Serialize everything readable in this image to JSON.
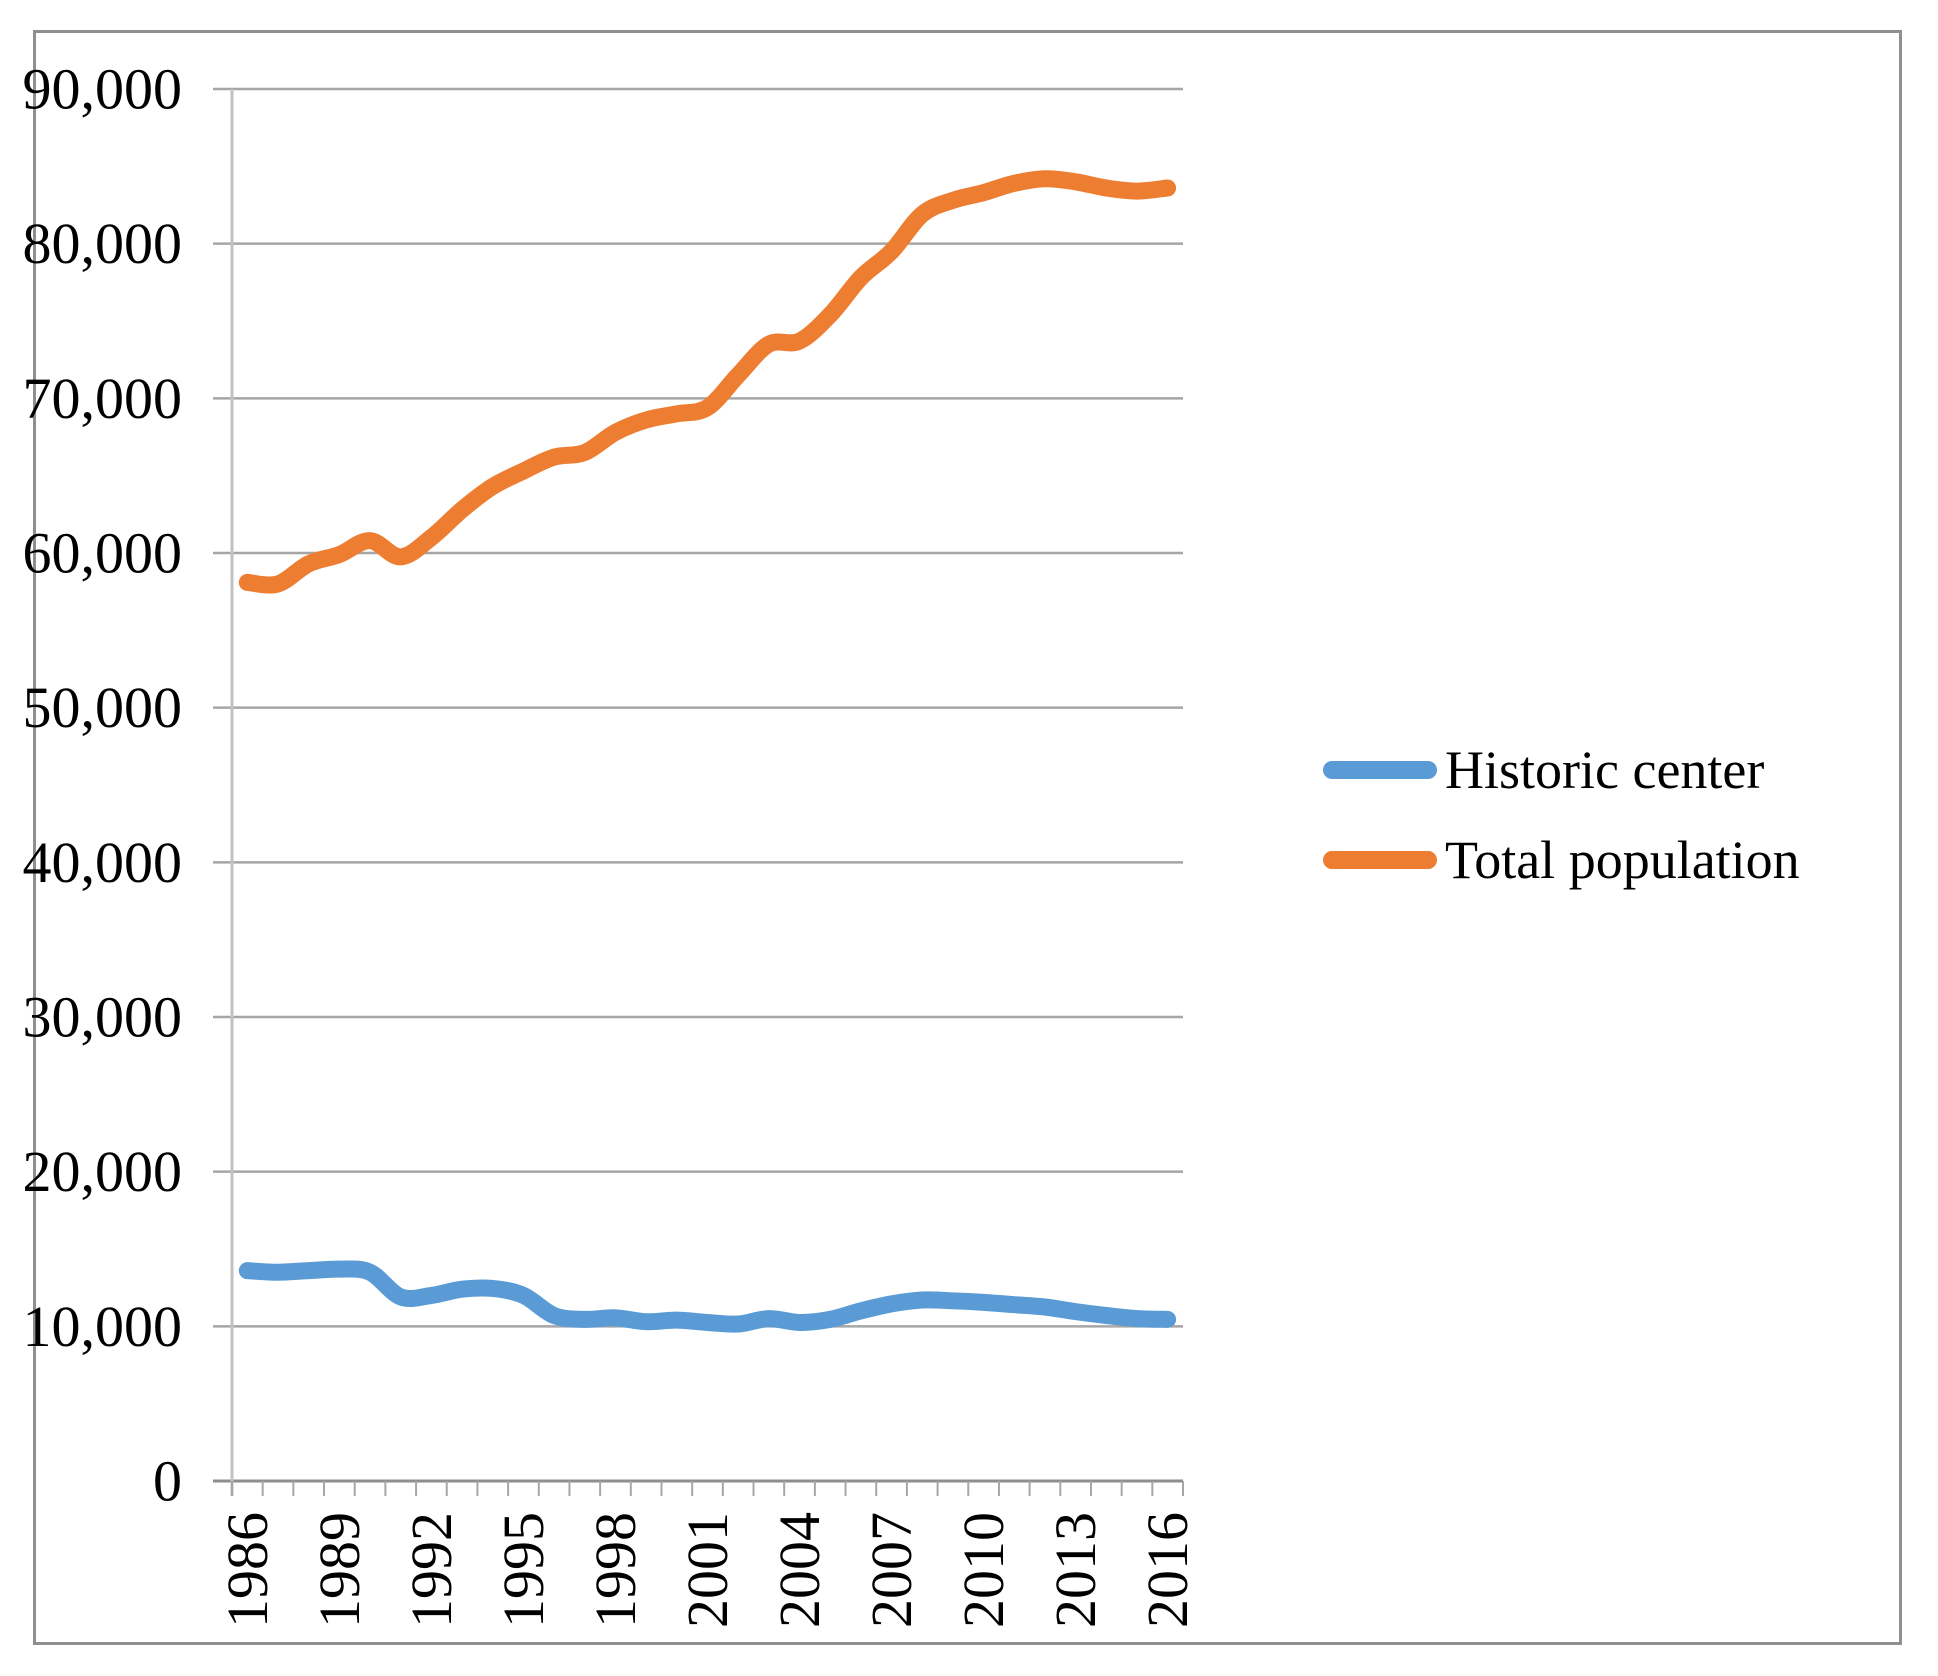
{
  "figure": {
    "background": "#ffffff",
    "border_color": "#8f8f8f"
  },
  "legend": {
    "items": [
      "Historic center",
      "Total population"
    ]
  },
  "chart_data": {
    "type": "line",
    "smooth": true,
    "title": "",
    "xlabel": "",
    "ylabel": "",
    "x": [
      1986,
      1987,
      1988,
      1989,
      1990,
      1991,
      1992,
      1993,
      1994,
      1995,
      1996,
      1997,
      1998,
      1999,
      2000,
      2001,
      2002,
      2003,
      2004,
      2005,
      2006,
      2007,
      2008,
      2009,
      2010,
      2011,
      2012,
      2013,
      2014,
      2015,
      2016
    ],
    "x_tick_labels": [
      "1986",
      "1989",
      "1992",
      "1995",
      "1998",
      "2001",
      "2004",
      "2007",
      "2010",
      "2013",
      "2016"
    ],
    "y_tick_labels": [
      "0",
      "10,000",
      "20,000",
      "30,000",
      "40,000",
      "50,000",
      "60,000",
      "70,000",
      "80,000",
      "90,000"
    ],
    "ylim": [
      0,
      90000
    ],
    "y_step": 10000,
    "grid": "horizontal-only",
    "gridline_color": "#a6a6a6",
    "axis_line_color": "#8e8e8e",
    "vertical_axis_color": "#c2c2c2",
    "tick_color": "#a6a6a6",
    "legend_position": "right-middle",
    "series": [
      {
        "name": "Historic center",
        "color": "#5b9bd5",
        "values": [
          13600,
          13500,
          13600,
          13700,
          13500,
          11900,
          12000,
          12400,
          12450,
          12000,
          10700,
          10450,
          10550,
          10300,
          10400,
          10250,
          10150,
          10500,
          10250,
          10450,
          11000,
          11450,
          11700,
          11650,
          11550,
          11400,
          11250,
          10950,
          10700,
          10500,
          10450
        ]
      },
      {
        "name": "Total population",
        "color": "#ed7d31",
        "values": [
          58100,
          58000,
          59300,
          59900,
          60800,
          59750,
          61000,
          62800,
          64300,
          65300,
          66200,
          66500,
          67800,
          68600,
          69000,
          69400,
          71500,
          73500,
          73700,
          75400,
          77800,
          79500,
          81900,
          82800,
          83300,
          83900,
          84200,
          84000,
          83600,
          83400,
          83600
        ]
      }
    ]
  }
}
